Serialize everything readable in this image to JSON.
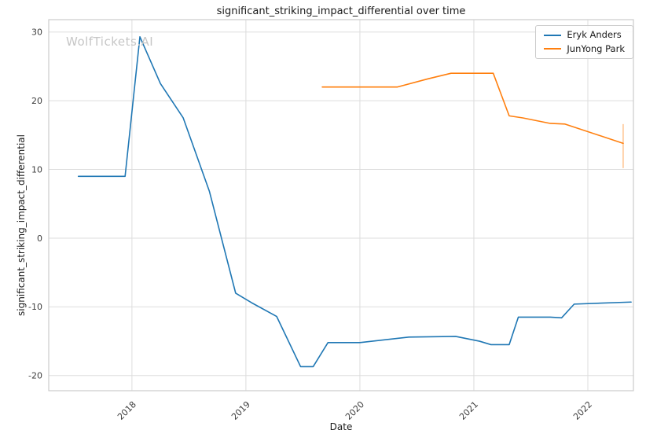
{
  "watermark": "WolfTickets.AI",
  "chart_data": {
    "type": "line",
    "title": "significant_striking_impact_differential over time",
    "xlabel": "Date",
    "ylabel": "significant_striking_impact_differential",
    "grid": true,
    "legend_position": "upper right",
    "xlim": [
      2017.27,
      2022.4
    ],
    "ylim": [
      -22.2,
      31.8
    ],
    "xticks": {
      "values": [
        2018,
        2019,
        2020,
        2021,
        2022
      ],
      "labels": [
        "2018",
        "2019",
        "2020",
        "2021",
        "2022"
      ]
    },
    "yticks": {
      "values": [
        -20,
        -10,
        0,
        10,
        20,
        30
      ],
      "labels": [
        "-20",
        "-10",
        "0",
        "10",
        "20",
        "30"
      ]
    },
    "series": [
      {
        "name": "Eryk Anders",
        "color": "#1f77b4",
        "points": [
          [
            2017.53,
            9.0
          ],
          [
            2017.94,
            9.0
          ],
          [
            2018.07,
            29.3
          ],
          [
            2018.25,
            22.5
          ],
          [
            2018.45,
            17.5
          ],
          [
            2018.68,
            6.8
          ],
          [
            2018.91,
            -8.0
          ],
          [
            2019.05,
            -9.4
          ],
          [
            2019.27,
            -11.4
          ],
          [
            2019.48,
            -18.7
          ],
          [
            2019.59,
            -18.7
          ],
          [
            2019.72,
            -15.2
          ],
          [
            2020.0,
            -15.2
          ],
          [
            2020.43,
            -14.4
          ],
          [
            2020.84,
            -14.3
          ],
          [
            2021.05,
            -15.0
          ],
          [
            2021.15,
            -15.5
          ],
          [
            2021.31,
            -15.5
          ],
          [
            2021.39,
            -11.5
          ],
          [
            2021.67,
            -11.5
          ],
          [
            2021.77,
            -11.6
          ],
          [
            2021.88,
            -9.6
          ],
          [
            2022.38,
            -9.3
          ]
        ]
      },
      {
        "name": "JunYong Park",
        "color": "#ff7f0e",
        "points": [
          [
            2019.67,
            22.0
          ],
          [
            2019.82,
            22.0
          ],
          [
            2020.07,
            22.0
          ],
          [
            2020.33,
            22.0
          ],
          [
            2020.6,
            23.2
          ],
          [
            2020.8,
            24.0
          ],
          [
            2021.0,
            24.0
          ],
          [
            2021.17,
            24.0
          ],
          [
            2021.31,
            17.8
          ],
          [
            2021.43,
            17.5
          ],
          [
            2021.67,
            16.7
          ],
          [
            2021.8,
            16.6
          ],
          [
            2022.31,
            13.8
          ]
        ],
        "end_bar": {
          "x": 2022.31,
          "y1": 10.2,
          "y2": 16.6
        }
      }
    ],
    "style": {
      "grid_color": "#dddddd",
      "spine_color": "#cccccc",
      "tick_color": "#3d3d3d",
      "text_color": "#1a1a1a",
      "watermark_color": "#c6c6c6",
      "background": "#ffffff"
    }
  }
}
